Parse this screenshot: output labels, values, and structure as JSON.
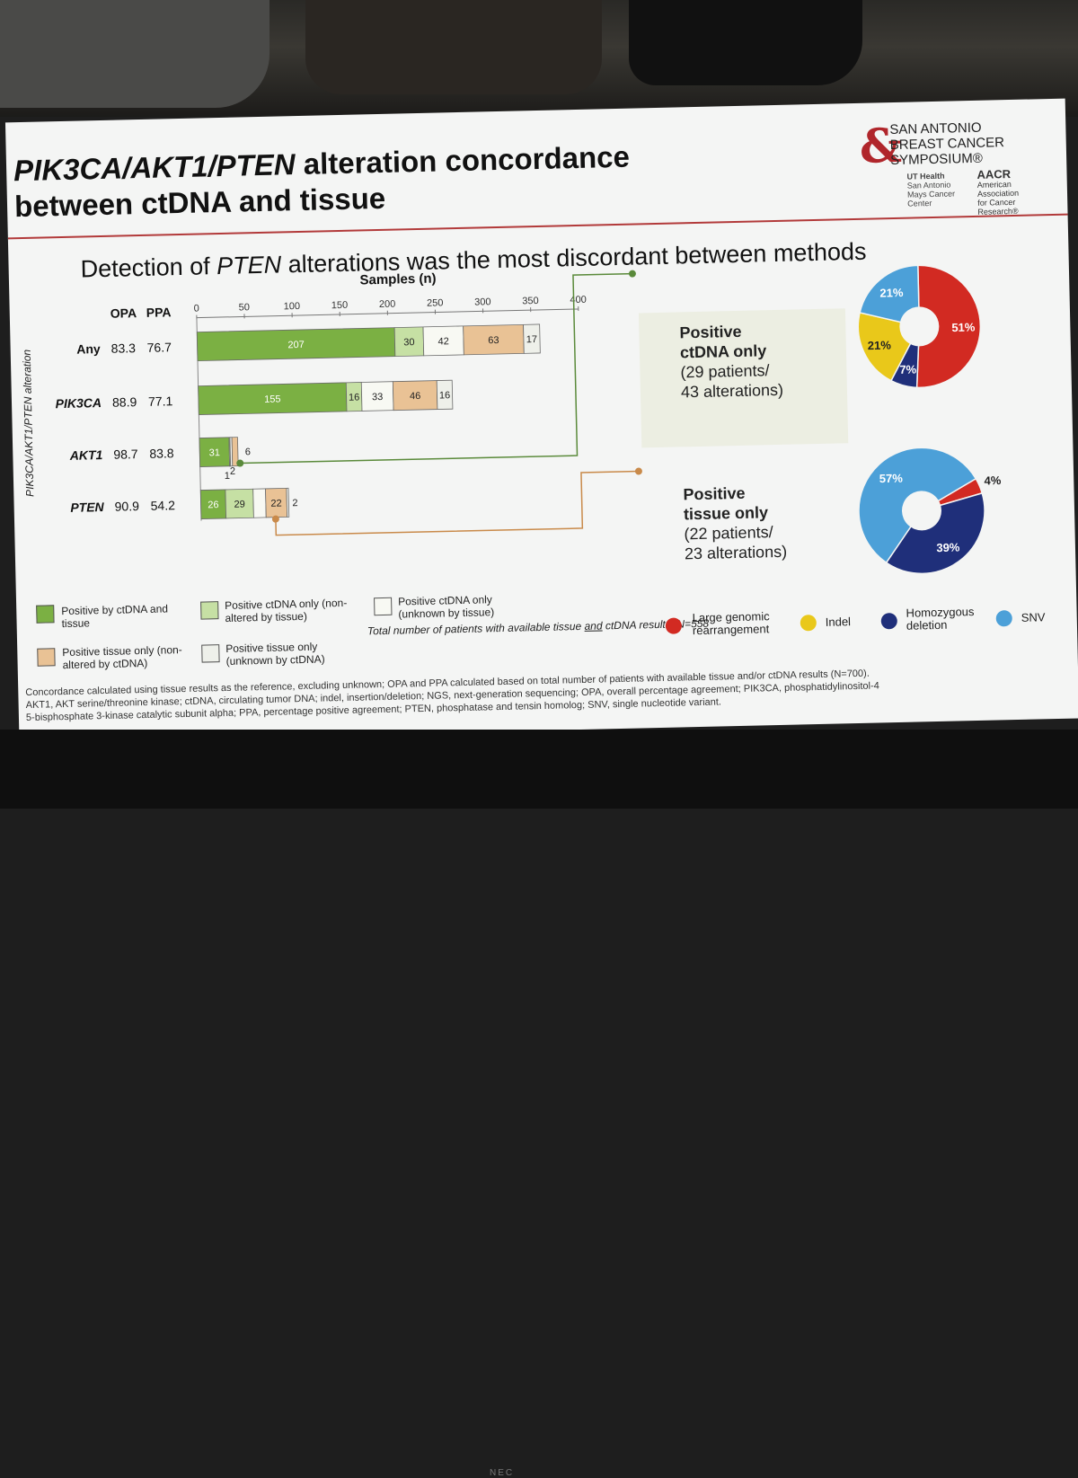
{
  "slide": {
    "title_italic": "PIK3CA/AKT1/PTEN",
    "title_rest": " alteration concordance",
    "title_line2": "between ctDNA and tissue",
    "subtitle_pre": "Detection of ",
    "subtitle_italic": "PTEN",
    "subtitle_post": " alterations was the most discordant between methods"
  },
  "logo": {
    "name": "SAN ANTONIO BREAST CANCER SYMPOSIUM®",
    "ut": "UT Health San Antonio Mays Cancer Center",
    "aacr": "AACR American Association for Cancer Research®"
  },
  "colors": {
    "pos_both": "#7bb043",
    "ctdna_only_non": "#c6e0a4",
    "ctdna_only_unknown": "#f8f9f3",
    "tissue_only_non": "#e9c295",
    "tissue_only_unknown": "#eef0ea",
    "large_genomic": "#d22a22",
    "indel": "#e9c81a",
    "homozygous": "#1f2f7a",
    "snv": "#4ca0d8",
    "connector_green": "#5a8a3a",
    "connector_orange": "#c98a4a"
  },
  "chart_data": [
    {
      "type": "bar",
      "stacked": true,
      "orientation": "horizontal",
      "title": "Samples (n)",
      "ylabel": "PIK3CA/AKT1/PTEN alteration",
      "xlim": [
        0,
        400
      ],
      "xticks": [
        "0",
        "50",
        "100",
        "150",
        "200",
        "250",
        "300",
        "350",
        "400"
      ],
      "col_headers": [
        "OPA",
        "PPA"
      ],
      "categories": [
        "Any",
        "PIK3CA",
        "AKT1",
        "PTEN"
      ],
      "opa": [
        "83.3",
        "88.9",
        "98.7",
        "90.9"
      ],
      "ppa": [
        "76.7",
        "77.1",
        "83.8",
        "54.2"
      ],
      "series": [
        {
          "name": "Positive by ctDNA and tissue",
          "values": [
            207,
            155,
            31,
            26
          ]
        },
        {
          "name": "Positive ctDNA only (non-altered by tissue)",
          "values": [
            30,
            16,
            1,
            29
          ]
        },
        {
          "name": "Positive ctDNA only (unknown by tissue)",
          "values": [
            42,
            33,
            2,
            13
          ]
        },
        {
          "name": "Positive tissue only (non-altered by ctDNA)",
          "values": [
            63,
            46,
            6,
            22
          ]
        },
        {
          "name": "Positive tissue only (unknown by ctDNA)",
          "values": [
            17,
            16,
            0,
            2
          ]
        }
      ],
      "value_labels": [
        [
          "207",
          "30",
          "42",
          "63",
          "17"
        ],
        [
          "155",
          "16",
          "33",
          "46",
          "16"
        ],
        [
          "31",
          "1",
          "2",
          "6",
          ""
        ],
        [
          "26",
          "29",
          "13",
          "22",
          "2"
        ]
      ]
    },
    {
      "type": "pie",
      "title": "Positive ctDNA only",
      "labels": [
        "Large genomic rearrangement",
        "Homozygous deletion",
        "Indel",
        "SNV"
      ],
      "values": [
        51,
        7,
        21,
        21
      ],
      "value_labels": [
        "51%",
        "7%",
        "21%",
        "21%"
      ]
    },
    {
      "type": "pie",
      "title": "Positive tissue only",
      "labels": [
        "Large genomic rearrangement",
        "Homozygous deletion",
        "SNV"
      ],
      "values": [
        4,
        39,
        57
      ],
      "value_labels": [
        "4%",
        "39%",
        "57%"
      ]
    }
  ],
  "positive_ctdna": {
    "line1": "Positive",
    "line2": "ctDNA only",
    "line3": "(29 patients/",
    "line4": "43 alterations)"
  },
  "positive_tissue": {
    "line1": "Positive",
    "line2": "tissue only",
    "line3": "(22 patients/",
    "line4": "23 alterations)"
  },
  "legend": {
    "pos_both": "Positive by ctDNA and tissue",
    "ctdna_only_non": "Positive ctDNA only (non-altered by tissue)",
    "ctdna_only_unknown": "Positive ctDNA only (unknown by tissue)",
    "tissue_only_non": "Positive tissue only (non-altered by ctDNA)",
    "tissue_only_unknown": "Positive tissue only (unknown by ctDNA)"
  },
  "total_note_pre": "Total number of patients with available tissue ",
  "total_note_and": "and",
  "total_note_post": " ctDNA results: N=558",
  "pie_legend": {
    "large": "Large genomic rearrangement",
    "indel": "Indel",
    "homo": "Homozygous deletion",
    "snv": "SNV"
  },
  "footnote": {
    "line1": "Concordance calculated using tissue results as the reference, excluding unknown; OPA and PPA calculated based on total number of patients with available tissue and/or ctDNA results (N=700).",
    "line2": "AKT1, AKT serine/threonine kinase; ctDNA, circulating tumor DNA; indel, insertion/deletion; NGS, next-generation sequencing; OPA, overall percentage agreement; PIK3CA, phosphatidylinositol-4",
    "line3": "5-bisphosphate 3-kinase catalytic subunit alpha; PPA, percentage positive agreement; PTEN, phosphatase and tensin homolog; SNV, single nucleotide variant."
  },
  "bezel": {
    "brand": "NEC"
  }
}
